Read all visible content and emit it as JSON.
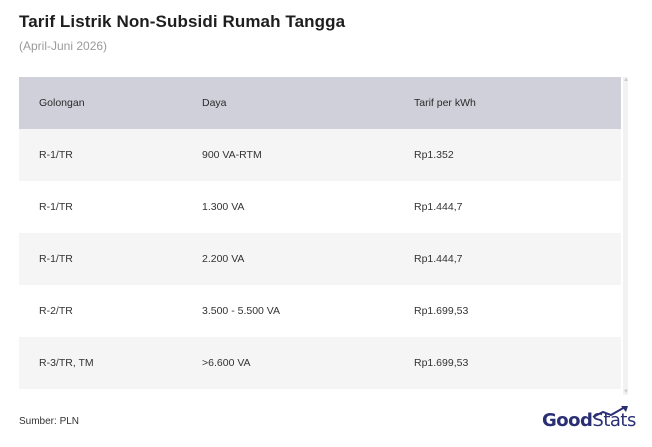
{
  "title": "Tarif Listrik Non-Subsidi Rumah Tangga",
  "subtitle": "(April-Juni 2026)",
  "table": {
    "headers": [
      "Golongan",
      "Daya",
      "Tarif per kWh"
    ],
    "rows": [
      [
        "R-1/TR",
        "900 VA-RTM",
        "Rp1.352"
      ],
      [
        "R-1/TR",
        "1.300 VA",
        "Rp1.444,7"
      ],
      [
        "R-1/TR",
        "2.200 VA",
        "Rp1.444,7"
      ],
      [
        "R-2/TR",
        "3.500 - 5.500 VA",
        "Rp1.699,53"
      ],
      [
        "R-3/TR, TM",
        ">6.600 VA",
        "Rp1.699,53"
      ]
    ]
  },
  "source": "Sumber: PLN",
  "logo": {
    "part1": "Good",
    "part2": "Stats"
  },
  "colors": {
    "header_bg": "#cfd0d9",
    "logo": "#2a2e73"
  }
}
